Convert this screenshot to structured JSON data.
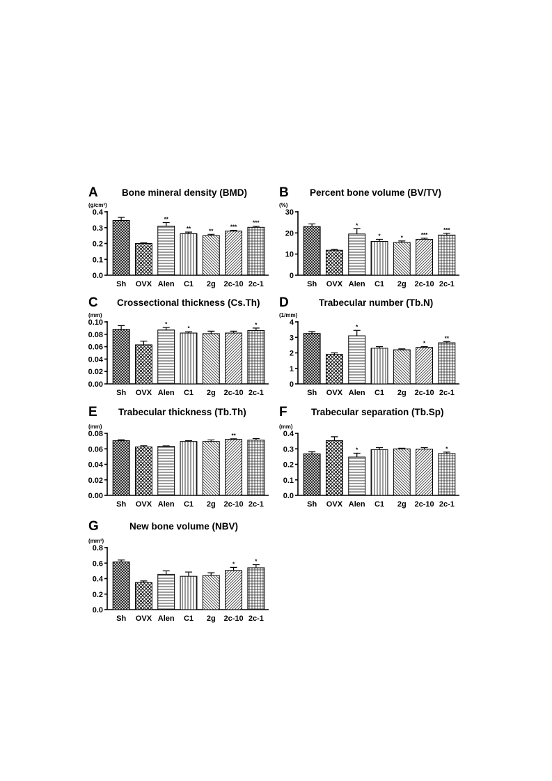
{
  "chart_data": [
    {
      "panel": "A",
      "type": "bar",
      "title": "Bone mineral density (BMD)",
      "unit": "(g/cm³)",
      "categories": [
        "Sh",
        "OVX",
        "Alen",
        "C1",
        "2g",
        "2c-10",
        "2c-1"
      ],
      "values": [
        0.345,
        0.2,
        0.31,
        0.262,
        0.25,
        0.278,
        0.302
      ],
      "errors": [
        0.02,
        0.004,
        0.022,
        0.01,
        0.008,
        0.005,
        0.007
      ],
      "significance": [
        "",
        "",
        "**",
        "**",
        "**",
        "***",
        "***"
      ],
      "ylim": [
        0,
        0.4
      ],
      "yticks": [
        0.0,
        0.1,
        0.2,
        0.3,
        0.4
      ],
      "ytick_labels": [
        "0.0",
        "0.1",
        "0.2",
        "0.3",
        "0.4"
      ]
    },
    {
      "panel": "B",
      "type": "bar",
      "title": "Percent bone volume (BV/TV)",
      "unit": "(%)",
      "categories": [
        "Sh",
        "OVX",
        "Alen",
        "C1",
        "2g",
        "2c-10",
        "2c-1"
      ],
      "values": [
        23,
        11.8,
        19.5,
        16,
        15.5,
        17,
        19
      ],
      "errors": [
        1.3,
        0.4,
        2.5,
        1.0,
        0.7,
        0.5,
        0.8
      ],
      "significance": [
        "",
        "",
        "*",
        "*",
        "*",
        "***",
        "***"
      ],
      "ylim": [
        0,
        30
      ],
      "yticks": [
        0,
        10,
        20,
        30
      ],
      "ytick_labels": [
        "0",
        "10",
        "20",
        "30"
      ]
    },
    {
      "panel": "C",
      "type": "bar",
      "title": "Crossectional thickness (Cs.Th)",
      "unit": "(mm)",
      "categories": [
        "Sh",
        "OVX",
        "Alen",
        "C1",
        "2g",
        "2c-10",
        "2c-1"
      ],
      "values": [
        0.088,
        0.063,
        0.087,
        0.082,
        0.081,
        0.082,
        0.086
      ],
      "errors": [
        0.006,
        0.006,
        0.004,
        0.002,
        0.004,
        0.003,
        0.004
      ],
      "significance": [
        "",
        "",
        "*",
        "*",
        "",
        "",
        "*"
      ],
      "ylim": [
        0,
        0.1
      ],
      "yticks": [
        0.0,
        0.02,
        0.04,
        0.06,
        0.08,
        0.1
      ],
      "ytick_labels": [
        "0.00",
        "0.02",
        "0.04",
        "0.06",
        "0.08",
        "0.10"
      ]
    },
    {
      "panel": "D",
      "type": "bar",
      "title": "Trabecular number (Tb.N)",
      "unit": "(1/mm)",
      "categories": [
        "Sh",
        "OVX",
        "Alen",
        "C1",
        "2g",
        "2c-10",
        "2c-1"
      ],
      "values": [
        3.25,
        1.9,
        3.1,
        2.3,
        2.2,
        2.35,
        2.65
      ],
      "errors": [
        0.12,
        0.1,
        0.35,
        0.1,
        0.06,
        0.05,
        0.08
      ],
      "significance": [
        "",
        "",
        "*",
        "",
        "",
        "*",
        "**"
      ],
      "ylim": [
        0,
        4
      ],
      "yticks": [
        0,
        1,
        2,
        3,
        4
      ],
      "ytick_labels": [
        "0",
        "1",
        "2",
        "3",
        "4"
      ]
    },
    {
      "panel": "E",
      "type": "bar",
      "title": "Trabecular thickness (Tb.Th)",
      "unit": "(mm)",
      "categories": [
        "Sh",
        "OVX",
        "Alen",
        "C1",
        "2g",
        "2c-10",
        "2c-1"
      ],
      "values": [
        0.0705,
        0.0625,
        0.0632,
        0.0695,
        0.0695,
        0.0722,
        0.0712
      ],
      "errors": [
        0.0012,
        0.0015,
        0.0006,
        0.001,
        0.002,
        0.0008,
        0.002
      ],
      "significance": [
        "",
        "",
        "",
        "",
        "",
        "**",
        ""
      ],
      "ylim": [
        0,
        0.08
      ],
      "yticks": [
        0.0,
        0.02,
        0.04,
        0.06,
        0.08
      ],
      "ytick_labels": [
        "0.00",
        "0.02",
        "0.04",
        "0.06",
        "0.08"
      ]
    },
    {
      "panel": "F",
      "type": "bar",
      "title": "Trabecular separation (Tb.Sp)",
      "unit": "(mm)",
      "categories": [
        "Sh",
        "OVX",
        "Alen",
        "C1",
        "2g",
        "2c-10",
        "2c-1"
      ],
      "values": [
        0.268,
        0.353,
        0.247,
        0.295,
        0.3,
        0.298,
        0.27
      ],
      "errors": [
        0.013,
        0.025,
        0.025,
        0.013,
        0.004,
        0.01,
        0.009
      ],
      "significance": [
        "",
        "",
        "*",
        "",
        "",
        "",
        "*"
      ],
      "ylim": [
        0,
        0.4
      ],
      "yticks": [
        0.0,
        0.1,
        0.2,
        0.3,
        0.4
      ],
      "ytick_labels": [
        "0.0",
        "0.1",
        "0.2",
        "0.3",
        "0.4"
      ]
    },
    {
      "panel": "G",
      "type": "bar",
      "title": "New bone volume  (NBV)",
      "unit": "(mm³)",
      "categories": [
        "Sh",
        "OVX",
        "Alen",
        "C1",
        "2g",
        "2c-10",
        "2c-1"
      ],
      "values": [
        0.615,
        0.35,
        0.455,
        0.43,
        0.44,
        0.505,
        0.54
      ],
      "errors": [
        0.025,
        0.02,
        0.045,
        0.055,
        0.035,
        0.04,
        0.04
      ],
      "significance": [
        "",
        "",
        "",
        "",
        "",
        "*",
        "*"
      ],
      "ylim": [
        0,
        0.8
      ],
      "yticks": [
        0.0,
        0.2,
        0.4,
        0.6,
        0.8
      ],
      "ytick_labels": [
        "0.0",
        "0.2",
        "0.4",
        "0.6",
        "0.8"
      ]
    }
  ]
}
